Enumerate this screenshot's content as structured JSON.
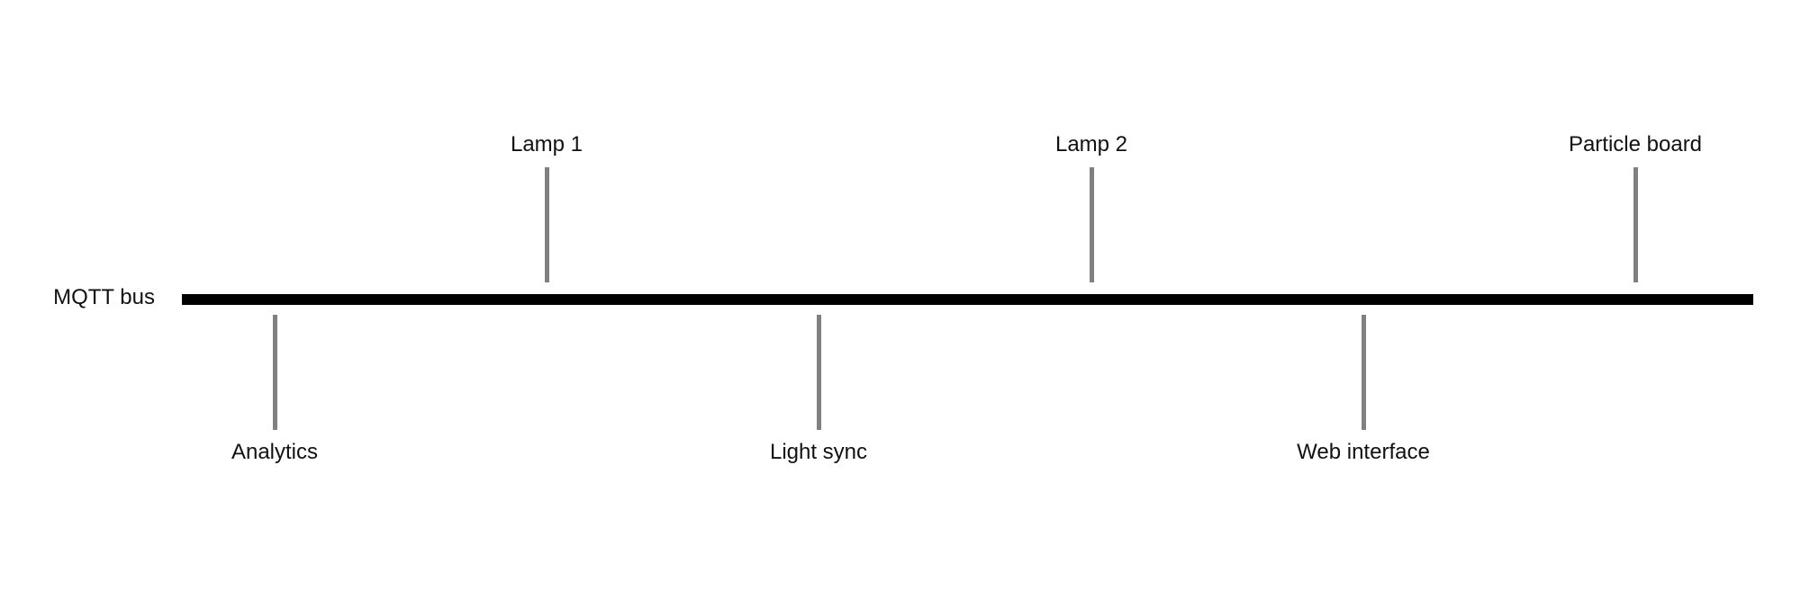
{
  "bus": {
    "label": "MQTT bus"
  },
  "top_nodes": [
    {
      "label": "Lamp 1"
    },
    {
      "label": "Lamp 2"
    },
    {
      "label": "Particle board"
    }
  ],
  "bottom_nodes": [
    {
      "label": "Analytics"
    },
    {
      "label": "Light sync"
    },
    {
      "label": "Web interface"
    }
  ],
  "colors": {
    "bus": "#000000",
    "connector": "#808080",
    "text": "#111111",
    "background": "#ffffff"
  }
}
